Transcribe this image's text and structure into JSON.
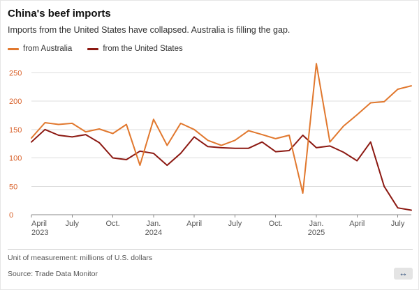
{
  "header": {
    "title": "China's beef imports",
    "subtitle": "Imports from the United States have collapsed. Australia is filling the gap."
  },
  "legend": [
    {
      "label": "from Australia",
      "color": "#e1782e"
    },
    {
      "label": "from the United States",
      "color": "#8c1912"
    }
  ],
  "chart_data": {
    "type": "line",
    "title": "China's beef imports",
    "xlabel": "",
    "ylabel": "millions of U.S. dollars",
    "ylim": [
      0,
      275
    ],
    "grid": true,
    "legend_position": "top-left",
    "axis_value_color": "#d9622b",
    "x": [
      "Apr 2023",
      "May 2023",
      "Jun 2023",
      "Jul 2023",
      "Aug 2023",
      "Sep 2023",
      "Oct 2023",
      "Nov 2023",
      "Dec 2023",
      "Jan 2024",
      "Feb 2024",
      "Mar 2024",
      "Apr 2024",
      "May 2024",
      "Jun 2024",
      "Jul 2024",
      "Aug 2024",
      "Sep 2024",
      "Oct 2024",
      "Nov 2024",
      "Dec 2024",
      "Jan 2025",
      "Feb 2025",
      "Mar 2025",
      "Apr 2025",
      "May 2025",
      "Jun 2025",
      "Jul 2025",
      "Aug 2025"
    ],
    "series": [
      {
        "name": "from Australia",
        "color": "#e1782e",
        "values": [
          135,
          162,
          159,
          161,
          146,
          151,
          143,
          159,
          87,
          168,
          122,
          161,
          150,
          131,
          122,
          131,
          148,
          141,
          134,
          140,
          38,
          266,
          128,
          156,
          176,
          197,
          199,
          221,
          227
        ]
      },
      {
        "name": "from the United States",
        "color": "#8c1912",
        "values": [
          128,
          150,
          140,
          137,
          141,
          127,
          100,
          97,
          112,
          108,
          87,
          108,
          137,
          120,
          118,
          117,
          117,
          128,
          111,
          113,
          140,
          118,
          121,
          110,
          95,
          128,
          50,
          12,
          8
        ]
      }
    ],
    "y_ticks": [
      0,
      50,
      100,
      150,
      200,
      250
    ],
    "x_ticks": [
      {
        "index": 0,
        "lines": [
          "April",
          "2023"
        ]
      },
      {
        "index": 3,
        "lines": [
          "July"
        ]
      },
      {
        "index": 6,
        "lines": [
          "Oct."
        ]
      },
      {
        "index": 9,
        "lines": [
          "Jan.",
          "2024"
        ]
      },
      {
        "index": 12,
        "lines": [
          "April"
        ]
      },
      {
        "index": 15,
        "lines": [
          "July"
        ]
      },
      {
        "index": 18,
        "lines": [
          "Oct."
        ]
      },
      {
        "index": 21,
        "lines": [
          "Jan.",
          "2025"
        ]
      },
      {
        "index": 24,
        "lines": [
          "April"
        ]
      },
      {
        "index": 27,
        "lines": [
          "July"
        ]
      }
    ]
  },
  "footer": {
    "unit": "Unit of measurement: millions of U.S. dollars",
    "source": "Source: Trade Data Monitor",
    "expand_icon": "↔"
  }
}
